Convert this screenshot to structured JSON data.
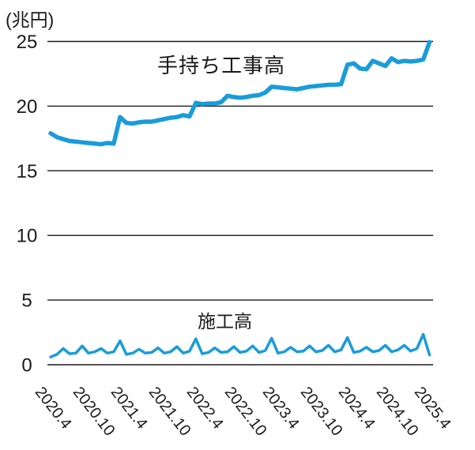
{
  "chart": {
    "unit_label": "(兆円)",
    "series_labels": {
      "backlog": "手持ち工事高",
      "volume": "施工高"
    }
  },
  "chart_data": {
    "type": "line",
    "title": "",
    "unit": "兆円",
    "x_interval": "monthly",
    "x_start": "2020.4",
    "x_end": "2025.4",
    "x_tick_labels": [
      "2020.4",
      "2020.10",
      "2021.4",
      "2021.10",
      "2022.4",
      "2022.10",
      "2023.4",
      "2023.10",
      "2024.4",
      "2024.10",
      "2025.4"
    ],
    "y_ticks": [
      0,
      5,
      10,
      15,
      20,
      25
    ],
    "ylim": [
      0,
      25
    ],
    "grid": "horizontal-only",
    "legend_position": "inline-annotations",
    "colors": {
      "line": "#1a9cd9",
      "grid": "#1a1a1a",
      "text": "#1a1a1a"
    },
    "series": [
      {
        "key": "backlog",
        "name": "手持ち工事高",
        "color": "#1a9cd9",
        "values": [
          17.9,
          17.6,
          17.45,
          17.3,
          17.25,
          17.2,
          17.15,
          17.1,
          17.05,
          17.15,
          17.1,
          19.15,
          18.7,
          18.65,
          18.75,
          18.8,
          18.8,
          18.9,
          19.0,
          19.1,
          19.15,
          19.3,
          19.2,
          20.25,
          20.15,
          20.2,
          20.2,
          20.3,
          20.8,
          20.7,
          20.65,
          20.7,
          20.8,
          20.85,
          21.05,
          21.5,
          21.45,
          21.4,
          21.35,
          21.3,
          21.4,
          21.5,
          21.55,
          21.6,
          21.65,
          21.65,
          21.7,
          23.2,
          23.3,
          22.9,
          22.85,
          23.5,
          23.3,
          23.1,
          23.7,
          23.4,
          23.5,
          23.45,
          23.5,
          23.6,
          24.95
        ]
      },
      {
        "key": "volume",
        "name": "施工高",
        "color": "#1a9cd9",
        "values": [
          0.6,
          0.8,
          1.25,
          0.85,
          0.9,
          1.45,
          0.9,
          1.0,
          1.25,
          0.9,
          1.0,
          1.85,
          0.8,
          0.9,
          1.2,
          0.9,
          0.95,
          1.3,
          0.9,
          1.0,
          1.4,
          0.9,
          1.05,
          2.0,
          0.85,
          0.95,
          1.3,
          0.95,
          1.0,
          1.4,
          0.95,
          1.05,
          1.45,
          0.95,
          1.1,
          2.05,
          0.9,
          1.0,
          1.35,
          1.0,
          1.05,
          1.45,
          1.0,
          1.1,
          1.5,
          1.0,
          1.15,
          2.1,
          0.95,
          1.05,
          1.35,
          1.0,
          1.1,
          1.5,
          1.0,
          1.15,
          1.5,
          1.05,
          1.25,
          2.35,
          0.75
        ]
      }
    ]
  }
}
